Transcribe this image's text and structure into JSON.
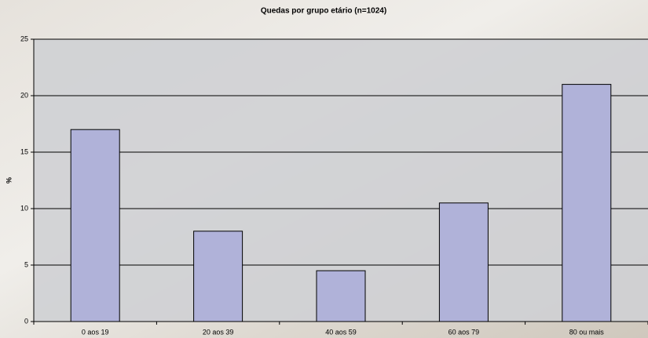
{
  "chart_data": {
    "type": "bar",
    "title": "Quedas por grupo etário (n=1024)",
    "ylabel": "%",
    "categories": [
      "0 aos 19",
      "20 aos 39",
      "40 aos 59",
      "60 aos 79",
      "80 ou mais"
    ],
    "values": [
      17,
      8,
      4.5,
      10.5,
      21
    ],
    "color": "#b0b2d9",
    "ylim": [
      0,
      25
    ],
    "yticks": [
      0,
      5,
      10,
      15,
      20,
      25
    ],
    "grid": true
  }
}
